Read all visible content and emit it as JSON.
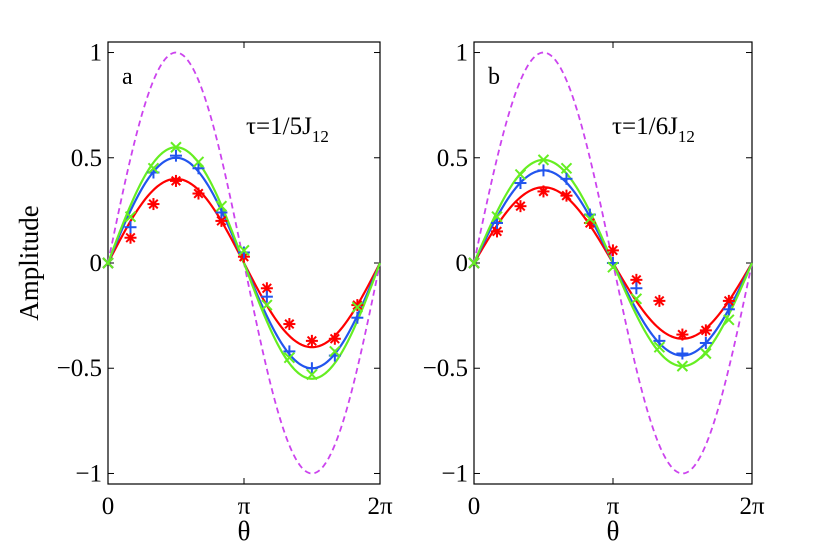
{
  "chart_data": [
    {
      "type": "line",
      "panel_label": "a",
      "annotation": {
        "main": "τ=1/5J",
        "subscript": "12"
      },
      "ylabel": "Amplitude",
      "xlabel": "θ",
      "xlim": [
        0,
        6.2832
      ],
      "ylim": [
        -1.05,
        1.05
      ],
      "xticks": [
        {
          "value": 0,
          "label": "0"
        },
        {
          "value": 3.1416,
          "label": "π"
        },
        {
          "value": 6.2832,
          "label": "2π"
        }
      ],
      "yticks": [
        {
          "value": 1,
          "label": "1"
        },
        {
          "value": 0.5,
          "label": "0.5"
        },
        {
          "value": 0,
          "label": "0"
        },
        {
          "value": -0.5,
          "label": "−0.5"
        },
        {
          "value": -1,
          "label": "−1"
        }
      ],
      "series": [
        {
          "name": "ideal",
          "style": "dashed",
          "color": "#cc44ee",
          "amplitude": 1.0
        },
        {
          "name": "red",
          "style": "solid",
          "color": "#ff0000",
          "amplitude": 0.4,
          "marker": "asterisk",
          "x": [
            0.52,
            1.05,
            1.57,
            2.09,
            2.62,
            3.14,
            3.67,
            4.19,
            4.71,
            5.24,
            5.76
          ],
          "y": [
            0.12,
            0.28,
            0.39,
            0.33,
            0.2,
            0.03,
            -0.12,
            -0.29,
            -0.37,
            -0.36,
            -0.2
          ]
        },
        {
          "name": "blue",
          "style": "solid",
          "color": "#2255ee",
          "amplitude": 0.5,
          "marker": "plus",
          "x": [
            0.52,
            1.05,
            1.57,
            2.09,
            2.62,
            3.14,
            3.67,
            4.19,
            4.71,
            5.24,
            5.76
          ],
          "y": [
            0.17,
            0.43,
            0.51,
            0.45,
            0.24,
            0.05,
            -0.16,
            -0.42,
            -0.5,
            -0.44,
            -0.26
          ]
        },
        {
          "name": "green",
          "style": "solid",
          "color": "#66ee22",
          "amplitude": 0.55,
          "marker": "cross",
          "x": [
            0.52,
            1.05,
            1.57,
            2.09,
            2.62,
            3.14,
            3.67,
            4.19,
            4.71,
            5.24,
            5.76
          ],
          "y": [
            0.22,
            0.45,
            0.55,
            0.48,
            0.27,
            0.06,
            -0.2,
            -0.45,
            -0.53,
            -0.42,
            -0.21
          ]
        }
      ]
    },
    {
      "type": "line",
      "panel_label": "b",
      "annotation": {
        "main": "τ=1/6J",
        "subscript": "12"
      },
      "ylabel": "",
      "xlabel": "θ",
      "xlim": [
        0,
        6.2832
      ],
      "ylim": [
        -1.05,
        1.05
      ],
      "xticks": [
        {
          "value": 0,
          "label": "0"
        },
        {
          "value": 3.1416,
          "label": "π"
        },
        {
          "value": 6.2832,
          "label": "2π"
        }
      ],
      "yticks": [
        {
          "value": 1,
          "label": "1"
        },
        {
          "value": 0.5,
          "label": "0.5"
        },
        {
          "value": 0,
          "label": "0"
        },
        {
          "value": -0.5,
          "label": "−0.5"
        },
        {
          "value": -1,
          "label": "−1"
        }
      ],
      "series": [
        {
          "name": "ideal",
          "style": "dashed",
          "color": "#cc44ee",
          "amplitude": 1.0
        },
        {
          "name": "red",
          "style": "solid",
          "color": "#ff0000",
          "amplitude": 0.36,
          "marker": "asterisk",
          "x": [
            0.52,
            1.05,
            1.57,
            2.09,
            2.62,
            3.14,
            3.67,
            4.19,
            4.71,
            5.24,
            5.76
          ],
          "y": [
            0.15,
            0.27,
            0.34,
            0.32,
            0.19,
            0.06,
            -0.08,
            -0.18,
            -0.34,
            -0.32,
            -0.18
          ]
        },
        {
          "name": "blue",
          "style": "solid",
          "color": "#2255ee",
          "amplitude": 0.44,
          "marker": "plus",
          "x": [
            0.52,
            1.05,
            1.57,
            2.09,
            2.62,
            3.14,
            3.67,
            4.19,
            4.71,
            5.24,
            5.76
          ],
          "y": [
            0.19,
            0.38,
            0.44,
            0.4,
            0.23,
            0.0,
            -0.12,
            -0.37,
            -0.43,
            -0.38,
            -0.22
          ]
        },
        {
          "name": "green",
          "style": "solid",
          "color": "#66ee22",
          "amplitude": 0.49,
          "marker": "cross",
          "x": [
            0.52,
            1.05,
            1.57,
            2.09,
            2.62,
            3.14,
            3.67,
            4.19,
            4.71,
            5.24,
            5.76
          ],
          "y": [
            0.22,
            0.42,
            0.49,
            0.45,
            0.21,
            -0.02,
            -0.17,
            -0.4,
            -0.49,
            -0.43,
            -0.27
          ]
        }
      ]
    }
  ]
}
